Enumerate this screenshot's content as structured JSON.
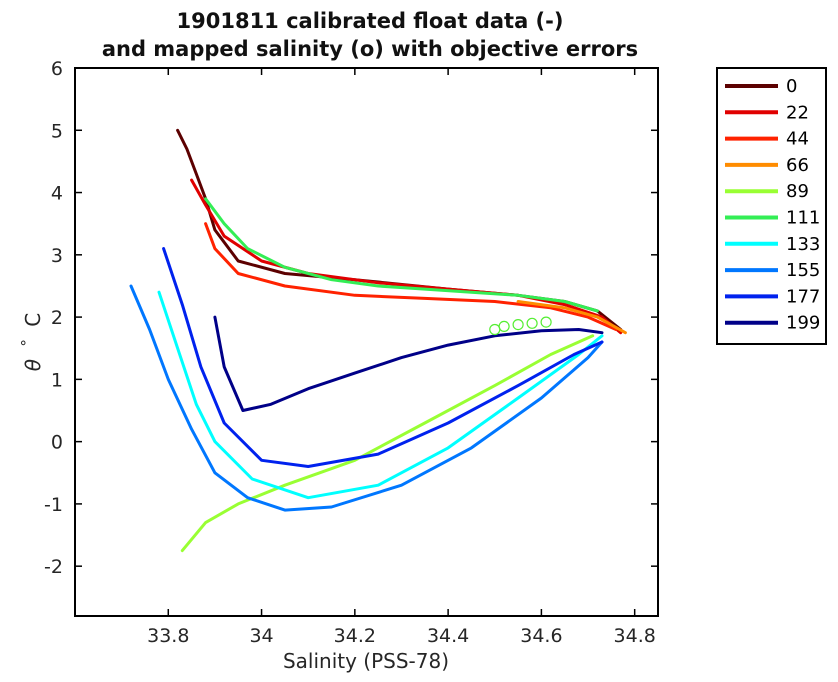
{
  "chart_data": {
    "type": "line",
    "title": [
      "1901811 calibrated float data (-)",
      "and mapped salinity (o) with objective errors"
    ],
    "xlabel": "Salinity (PSS-78)",
    "ylabel_symbol": "θ",
    "ylabel_degree": "°",
    "ylabel_unit": "C",
    "xlim": [
      33.6,
      34.85
    ],
    "ylim": [
      -2.8,
      6
    ],
    "xticks": [
      33.8,
      34,
      34.2,
      34.4,
      34.6,
      34.8
    ],
    "xtick_labels": [
      "33.8",
      "34",
      "34.2",
      "34.4",
      "34.6",
      "34.8"
    ],
    "yticks": [
      -2,
      -1,
      0,
      1,
      2,
      3,
      4,
      5,
      6
    ],
    "ytick_labels": [
      "-2",
      "-1",
      "0",
      "1",
      "2",
      "3",
      "4",
      "5",
      "6"
    ],
    "legend_position": "outside-right",
    "legend": [
      {
        "label": "0",
        "color": "#5c0000"
      },
      {
        "label": "22",
        "color": "#e00000"
      },
      {
        "label": "44",
        "color": "#ff2200"
      },
      {
        "label": "66",
        "color": "#ff8c00"
      },
      {
        "label": "89",
        "color": "#99ff33"
      },
      {
        "label": "111",
        "color": "#33ee55"
      },
      {
        "label": "133",
        "color": "#00ffff"
      },
      {
        "label": "155",
        "color": "#0077ff"
      },
      {
        "label": "177",
        "color": "#0022ee"
      },
      {
        "label": "199",
        "color": "#000088"
      }
    ],
    "series": [
      {
        "color": "#5c0000",
        "x": [
          33.82,
          33.84,
          33.86,
          33.88,
          33.9,
          33.95,
          34.05,
          34.2,
          34.4,
          34.55,
          34.65,
          34.72,
          34.77
        ],
        "y": [
          5.0,
          4.7,
          4.3,
          3.9,
          3.4,
          2.9,
          2.7,
          2.6,
          2.45,
          2.35,
          2.25,
          2.1,
          1.8
        ]
      },
      {
        "color": "#e00000",
        "x": [
          33.85,
          33.88,
          33.92,
          34.0,
          34.1,
          34.25,
          34.4,
          34.55,
          34.65,
          34.73,
          34.77
        ],
        "y": [
          4.2,
          3.8,
          3.3,
          2.9,
          2.7,
          2.55,
          2.45,
          2.35,
          2.2,
          2.0,
          1.75
        ]
      },
      {
        "color": "#ff2200",
        "x": [
          33.88,
          33.9,
          33.95,
          34.05,
          34.2,
          34.35,
          34.5,
          34.62,
          34.7,
          34.76
        ],
        "y": [
          3.5,
          3.1,
          2.7,
          2.5,
          2.35,
          2.3,
          2.25,
          2.15,
          2.0,
          1.8
        ]
      },
      {
        "color": "#ff8c00",
        "x": [
          34.55,
          34.65,
          34.72,
          34.78
        ],
        "y": [
          2.25,
          2.15,
          2.0,
          1.75
        ]
      },
      {
        "color": "#99ff33",
        "x": [
          33.83,
          33.88,
          33.95,
          34.05,
          34.2,
          34.35,
          34.5,
          34.62,
          34.71
        ],
        "y": [
          -1.75,
          -1.3,
          -1.0,
          -0.7,
          -0.3,
          0.3,
          0.9,
          1.4,
          1.7
        ]
      },
      {
        "color": "#33ee55",
        "x": [
          33.88,
          33.92,
          33.97,
          34.05,
          34.15,
          34.25,
          34.35,
          34.45,
          34.55,
          34.65,
          34.72
        ],
        "y": [
          3.9,
          3.5,
          3.1,
          2.8,
          2.6,
          2.5,
          2.45,
          2.4,
          2.35,
          2.25,
          2.1
        ]
      },
      {
        "color": "#00ffff",
        "x": [
          33.78,
          33.82,
          33.86,
          33.9,
          33.98,
          34.1,
          34.25,
          34.4,
          34.55,
          34.68,
          34.73
        ],
        "y": [
          2.4,
          1.5,
          0.6,
          0.0,
          -0.6,
          -0.9,
          -0.7,
          -0.1,
          0.7,
          1.4,
          1.7
        ]
      },
      {
        "color": "#0077ff",
        "x": [
          33.72,
          33.76,
          33.8,
          33.85,
          33.9,
          33.97,
          34.05,
          34.15,
          34.3,
          34.45,
          34.6,
          34.7,
          34.73
        ],
        "y": [
          2.5,
          1.8,
          1.0,
          0.2,
          -0.5,
          -0.9,
          -1.1,
          -1.05,
          -0.7,
          -0.1,
          0.7,
          1.35,
          1.6
        ]
      },
      {
        "color": "#0022ee",
        "x": [
          33.79,
          33.83,
          33.87,
          33.92,
          34.0,
          34.1,
          34.25,
          34.4,
          34.55,
          34.67,
          34.73
        ],
        "y": [
          3.1,
          2.2,
          1.2,
          0.3,
          -0.3,
          -0.4,
          -0.2,
          0.3,
          0.9,
          1.4,
          1.6
        ]
      },
      {
        "color": "#000088",
        "x": [
          33.9,
          33.92,
          33.96,
          34.02,
          34.1,
          34.2,
          34.3,
          34.4,
          34.5,
          34.6,
          34.68,
          34.73
        ],
        "y": [
          2.0,
          1.2,
          0.5,
          0.6,
          0.85,
          1.1,
          1.35,
          1.55,
          1.7,
          1.78,
          1.8,
          1.75
        ]
      }
    ],
    "mapped_points": {
      "color": "#55ee33",
      "x": [
        34.5,
        34.52,
        34.55,
        34.58,
        34.61
      ],
      "y": [
        1.8,
        1.85,
        1.88,
        1.9,
        1.92
      ]
    }
  }
}
